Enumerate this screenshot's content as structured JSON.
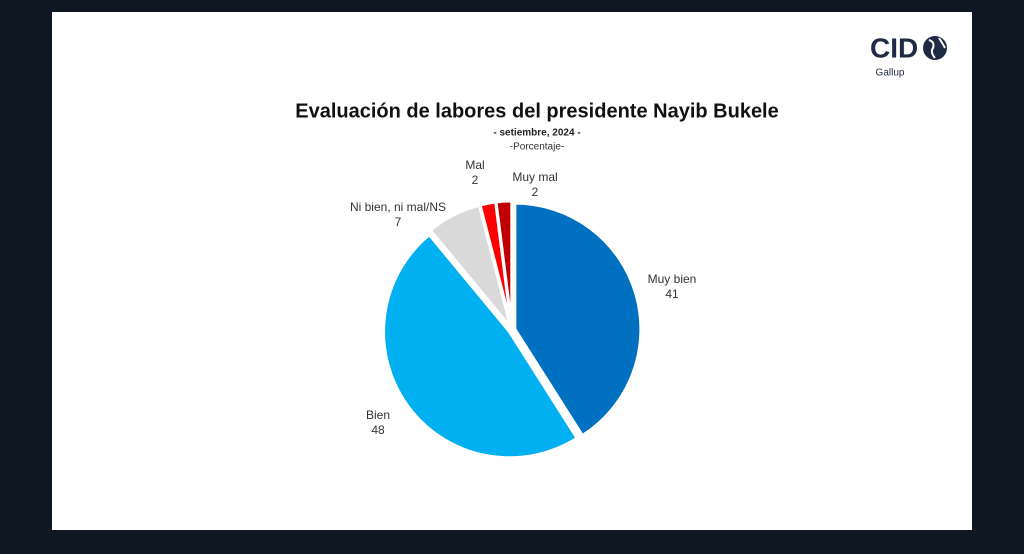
{
  "chart_data": {
    "type": "pie",
    "title": "Evaluación de labores del presidente Nayib Bukele",
    "subtitle": "- setiembre, 2024 -",
    "caption": "-Porcentaje-",
    "categories": [
      "Muy bien",
      "Bien",
      "Ni bien, ni mal/NS",
      "Mal",
      "Muy mal"
    ],
    "values": [
      41,
      48,
      7,
      2,
      2
    ],
    "colors": [
      "#0070c0",
      "#00b0f0",
      "#d9d9d9",
      "#ff0000",
      "#c00000"
    ]
  },
  "logo": {
    "name": "CID",
    "tagline": "Gallup"
  }
}
